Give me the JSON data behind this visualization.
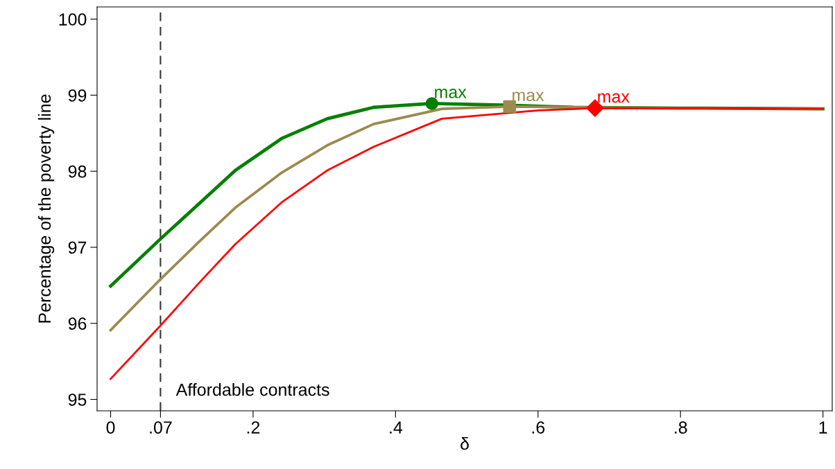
{
  "chart_data": {
    "type": "line",
    "xlabel": "δ",
    "ylabel": "Percentage of the poverty line",
    "xlim": [
      -0.019,
      1.013
    ],
    "ylim": [
      94.85,
      100.16
    ],
    "xticks": [
      0,
      {
        "value": 0.07,
        "label": ".07"
      },
      {
        "value": 0.2,
        "label": ".2"
      },
      {
        "value": 0.4,
        "label": ".4"
      },
      {
        "value": 0.6,
        "label": ".6"
      },
      {
        "value": 0.8,
        "label": ".8"
      },
      1
    ],
    "yticks": [
      95,
      96,
      97,
      98,
      99,
      100
    ],
    "grid": false,
    "legend": false,
    "series": [
      {
        "color": "#008000",
        "marker": "none",
        "x": [
          0,
          0.07,
          0.126,
          0.175,
          0.24,
          0.304,
          0.369,
          0.45,
          0.55,
          0.65,
          0.8,
          1
        ],
        "values": [
          96.49,
          97.11,
          97.59,
          98.01,
          98.43,
          98.69,
          98.84,
          98.89,
          98.87,
          98.84,
          98.83,
          98.82
        ]
      },
      {
        "color": "#9c8a4e",
        "marker": "none",
        "x": [
          0,
          0.07,
          0.126,
          0.175,
          0.24,
          0.304,
          0.369,
          0.465,
          0.56,
          0.65,
          0.8,
          1
        ],
        "values": [
          95.91,
          96.58,
          97.09,
          97.52,
          97.98,
          98.34,
          98.62,
          98.82,
          98.85,
          98.84,
          98.83,
          98.82
        ]
      },
      {
        "color": "#ff0000",
        "marker": "none",
        "x": [
          0,
          0.07,
          0.126,
          0.175,
          0.24,
          0.304,
          0.369,
          0.465,
          0.6,
          0.68,
          0.8,
          1
        ],
        "values": [
          95.27,
          95.97,
          96.55,
          97.04,
          97.59,
          98.01,
          98.32,
          98.69,
          98.8,
          98.83,
          98.83,
          98.82
        ]
      },
      {
        "type": "scatter",
        "color": "#008000",
        "marker": "circle",
        "x": [
          0.451
        ],
        "values": [
          98.89
        ]
      },
      {
        "type": "scatter",
        "color": "#9c8a4e",
        "marker": "square",
        "x": [
          0.56
        ],
        "values": [
          98.85
        ]
      },
      {
        "type": "scatter",
        "color": "#ff0000",
        "marker": "diamond",
        "x": [
          0.68
        ],
        "values": [
          98.83
        ]
      }
    ],
    "annotations": [
      {
        "text": "max",
        "x": 0.451,
        "y": 98.89
      },
      {
        "text": "max",
        "x": 0.56,
        "y": 98.85
      },
      {
        "text": "max",
        "x": 0.68,
        "y": 98.83
      }
    ],
    "ref_lines": [
      {
        "axis": "x",
        "value": 0.07,
        "label": "Affordable contracts",
        "color": "#333333",
        "line_style": "dashed"
      }
    ]
  }
}
